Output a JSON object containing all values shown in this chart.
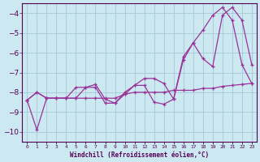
{
  "xlabel": "Windchill (Refroidissement éolien,°C)",
  "background_color": "#cce8f0",
  "grid_color": "#aaccd8",
  "line_color": "#993399",
  "x_values": [
    0,
    1,
    2,
    3,
    4,
    5,
    6,
    7,
    8,
    9,
    10,
    11,
    12,
    13,
    14,
    15,
    16,
    17,
    18,
    19,
    20,
    21,
    22,
    23
  ],
  "y_diagonal": [
    -8.4,
    -9.9,
    -8.3,
    -8.3,
    -8.3,
    -8.3,
    -8.3,
    -8.3,
    -8.3,
    -8.3,
    -8.1,
    -8.0,
    -8.0,
    -8.0,
    -8.0,
    -7.9,
    -7.9,
    -7.9,
    -7.8,
    -7.8,
    -7.7,
    -7.65,
    -7.6,
    -7.55
  ],
  "y_jagged1": [
    -8.4,
    -8.0,
    -8.3,
    -8.3,
    -8.3,
    -7.75,
    -7.75,
    -7.6,
    -8.35,
    -8.55,
    -8.0,
    -7.65,
    -7.3,
    -7.3,
    -7.55,
    -8.35,
    -6.2,
    -5.5,
    -4.85,
    -4.1,
    -3.7,
    -4.35,
    -6.6,
    -7.55
  ],
  "y_jagged2": [
    -8.4,
    -8.0,
    -8.3,
    -8.3,
    -8.3,
    -8.3,
    -7.75,
    -7.75,
    -8.55,
    -8.55,
    -8.1,
    -7.65,
    -7.65,
    -8.5,
    -8.6,
    -8.35,
    -6.35,
    -5.5,
    -6.3,
    -6.7,
    -4.1,
    -3.7,
    -4.35,
    -6.6
  ],
  "ylim": [
    -10.5,
    -3.5
  ],
  "yticks": [
    -10,
    -9,
    -8,
    -7,
    -6,
    -5,
    -4
  ],
  "xlim": [
    -0.5,
    23.5
  ]
}
